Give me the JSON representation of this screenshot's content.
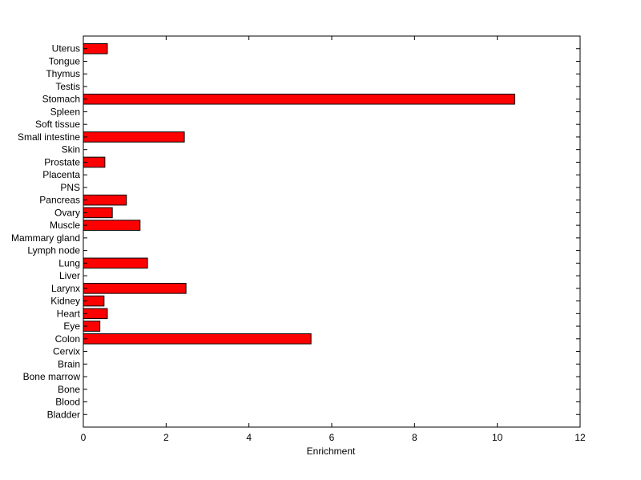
{
  "chart_data": {
    "type": "bar",
    "orientation": "horizontal",
    "title": "",
    "xlabel": "Enrichment",
    "ylabel": "",
    "xlim": [
      0,
      12
    ],
    "xticks": [
      "0",
      "2",
      "4",
      "6",
      "8",
      "10",
      "12"
    ],
    "grid": false,
    "legend": "none",
    "bar_color": "#ff0000",
    "bar_edge_color": "#000000",
    "categories": [
      "Bladder",
      "Blood",
      "Bone",
      "Bone marrow",
      "Brain",
      "Cervix",
      "Colon",
      "Eye",
      "Heart",
      "Kidney",
      "Larynx",
      "Liver",
      "Lung",
      "Lymph node",
      "Mammary gland",
      "Muscle",
      "Ovary",
      "Pancreas",
      "PNS",
      "Placenta",
      "Prostate",
      "Skin",
      "Small intestine",
      "Soft tissue",
      "Spleen",
      "Stomach",
      "Testis",
      "Thymus",
      "Tongue",
      "Uterus"
    ],
    "values": [
      0,
      0,
      0,
      0,
      0,
      0,
      5.5,
      0.4,
      0.58,
      0.5,
      2.48,
      0,
      1.55,
      0,
      0,
      1.37,
      0.7,
      1.04,
      0,
      0,
      0.52,
      0,
      2.44,
      0,
      0,
      10.42,
      0,
      0,
      0,
      0.58
    ]
  }
}
